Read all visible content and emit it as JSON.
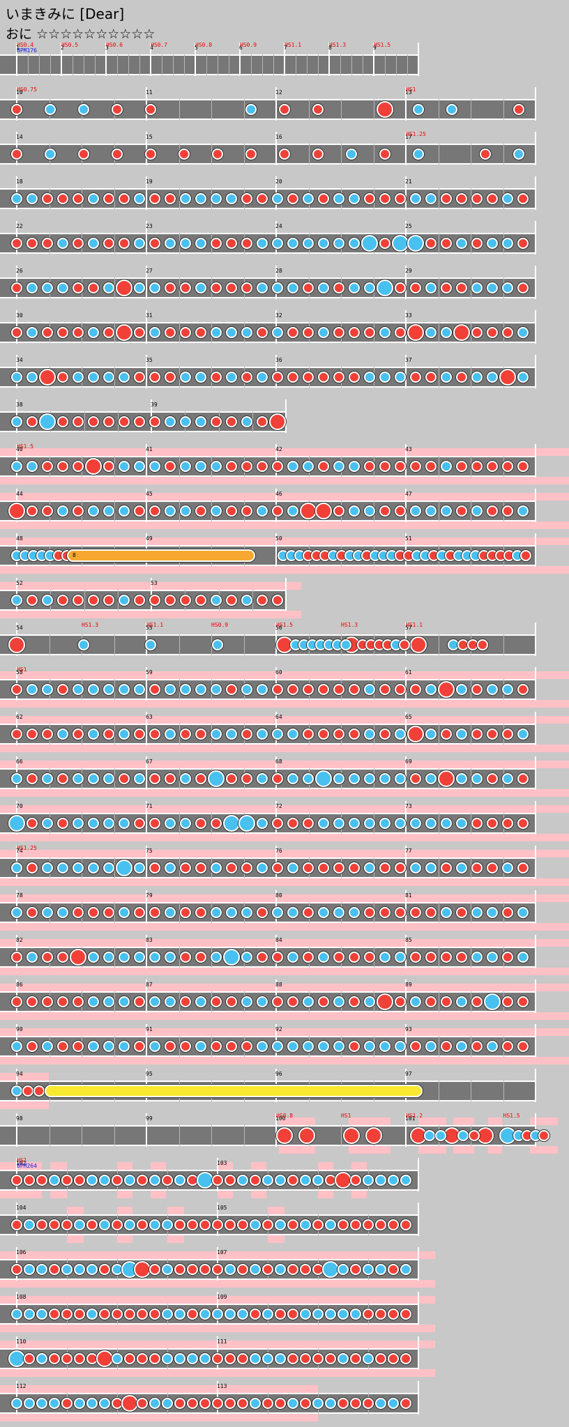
{
  "title": "いまきみに [Dear]",
  "difficulty": "おに ☆☆☆☆☆☆☆☆☆☆",
  "colors": {
    "don": "#f04038",
    "ka": "#48c0f0",
    "roll": "#f8a830",
    "balloon": "#f8e830",
    "event_text": "#e00000",
    "bpm_text": "#1020e0",
    "lane": "#777777",
    "background": "#c8c8c8",
    "gogo": "#ffc0c6"
  },
  "rows": [
    {
      "measures": [
        "1",
        "2",
        "3",
        "4",
        "5",
        "6",
        "7",
        "8",
        "9"
      ],
      "events": [
        {
          "text": "HS0.4",
          "m": 0
        },
        {
          "text": "HS0.5",
          "m": 1
        },
        {
          "text": "HS0.6",
          "m": 2
        },
        {
          "text": "HS0.7",
          "m": 3
        },
        {
          "text": "HS0.8",
          "m": 4
        },
        {
          "text": "HS0.9",
          "m": 5
        },
        {
          "text": "HS1.1",
          "m": 6
        },
        {
          "text": "HS1.3",
          "m": 7
        },
        {
          "text": "HS1.5",
          "m": 8
        }
      ],
      "bpm": "BPM176"
    },
    {
      "measures": [
        "10",
        "11",
        "12",
        "13"
      ],
      "events": [
        {
          "text": "HS0.75",
          "m": 0
        },
        {
          "text": "HS1",
          "m": 3
        }
      ]
    },
    {
      "measures": [
        "14",
        "15",
        "16",
        "17"
      ],
      "events": [
        {
          "text": "HS1.25",
          "m": 3
        }
      ]
    },
    {
      "measures": [
        "18",
        "19",
        "20",
        "21"
      ],
      "events": []
    },
    {
      "measures": [
        "22",
        "23",
        "24",
        "25"
      ],
      "events": []
    },
    {
      "measures": [
        "26",
        "27",
        "28",
        "29"
      ],
      "events": []
    },
    {
      "measures": [
        "30",
        "31",
        "32",
        "33"
      ],
      "events": []
    },
    {
      "measures": [
        "34",
        "35",
        "36",
        "37"
      ],
      "events": []
    },
    {
      "measures": [
        "38",
        "39"
      ],
      "events": []
    },
    {
      "measures": [
        "40",
        "41",
        "42",
        "43"
      ],
      "events": [
        {
          "text": "HS1.5",
          "m": 0
        }
      ]
    },
    {
      "measures": [
        "44",
        "45",
        "46",
        "47"
      ],
      "events": []
    },
    {
      "measures": [
        "48",
        "49",
        "50",
        "51"
      ],
      "events": [],
      "roll_label": "8"
    },
    {
      "measures": [
        "52",
        "53"
      ],
      "events": []
    },
    {
      "measures": [
        "54",
        "55",
        "56",
        "57"
      ],
      "events": [
        {
          "text": "HS1.3",
          "m": 0.5
        },
        {
          "text": "HS1.1",
          "m": 1
        },
        {
          "text": "HS0.9",
          "m": 1.5
        },
        {
          "text": "HS1.5",
          "m": 2
        },
        {
          "text": "HS1.3",
          "m": 2.5
        },
        {
          "text": "HS1.1",
          "m": 3
        }
      ]
    },
    {
      "measures": [
        "58",
        "59",
        "60",
        "61"
      ],
      "events": [
        {
          "text": "HS1",
          "m": 0
        }
      ]
    },
    {
      "measures": [
        "62",
        "63",
        "64",
        "65"
      ],
      "events": []
    },
    {
      "measures": [
        "66",
        "67",
        "68",
        "69"
      ],
      "events": []
    },
    {
      "measures": [
        "70",
        "71",
        "72",
        "73"
      ],
      "events": []
    },
    {
      "measures": [
        "74",
        "75",
        "76",
        "77"
      ],
      "events": [
        {
          "text": "HS1.25",
          "m": 0
        }
      ]
    },
    {
      "measures": [
        "78",
        "79",
        "80",
        "81"
      ],
      "events": []
    },
    {
      "measures": [
        "82",
        "83",
        "84",
        "85"
      ],
      "events": []
    },
    {
      "measures": [
        "86",
        "87",
        "88",
        "89"
      ],
      "events": []
    },
    {
      "measures": [
        "90",
        "91",
        "92",
        "93"
      ],
      "events": []
    },
    {
      "measures": [
        "94",
        "95",
        "96",
        "97"
      ],
      "events": []
    },
    {
      "measures": [
        "98",
        "99",
        "100",
        "101"
      ],
      "events": [
        {
          "text": "HS0.8",
          "m": 2
        },
        {
          "text": "HS1",
          "m": 2.5
        },
        {
          "text": "HS1.2",
          "m": 3
        },
        {
          "text": "HS1.5",
          "m": 3.75
        }
      ]
    },
    {
      "measures": [
        "102",
        "103"
      ],
      "events": [
        {
          "text": "HS1",
          "m": 0
        }
      ],
      "bpm": "BPM264"
    },
    {
      "measures": [
        "104",
        "105"
      ],
      "events": []
    },
    {
      "measures": [
        "106",
        "107"
      ],
      "events": []
    },
    {
      "measures": [
        "108",
        "109"
      ],
      "events": []
    },
    {
      "measures": [
        "110",
        "111"
      ],
      "events": []
    },
    {
      "measures": [
        "112",
        "113"
      ],
      "events": []
    }
  ]
}
